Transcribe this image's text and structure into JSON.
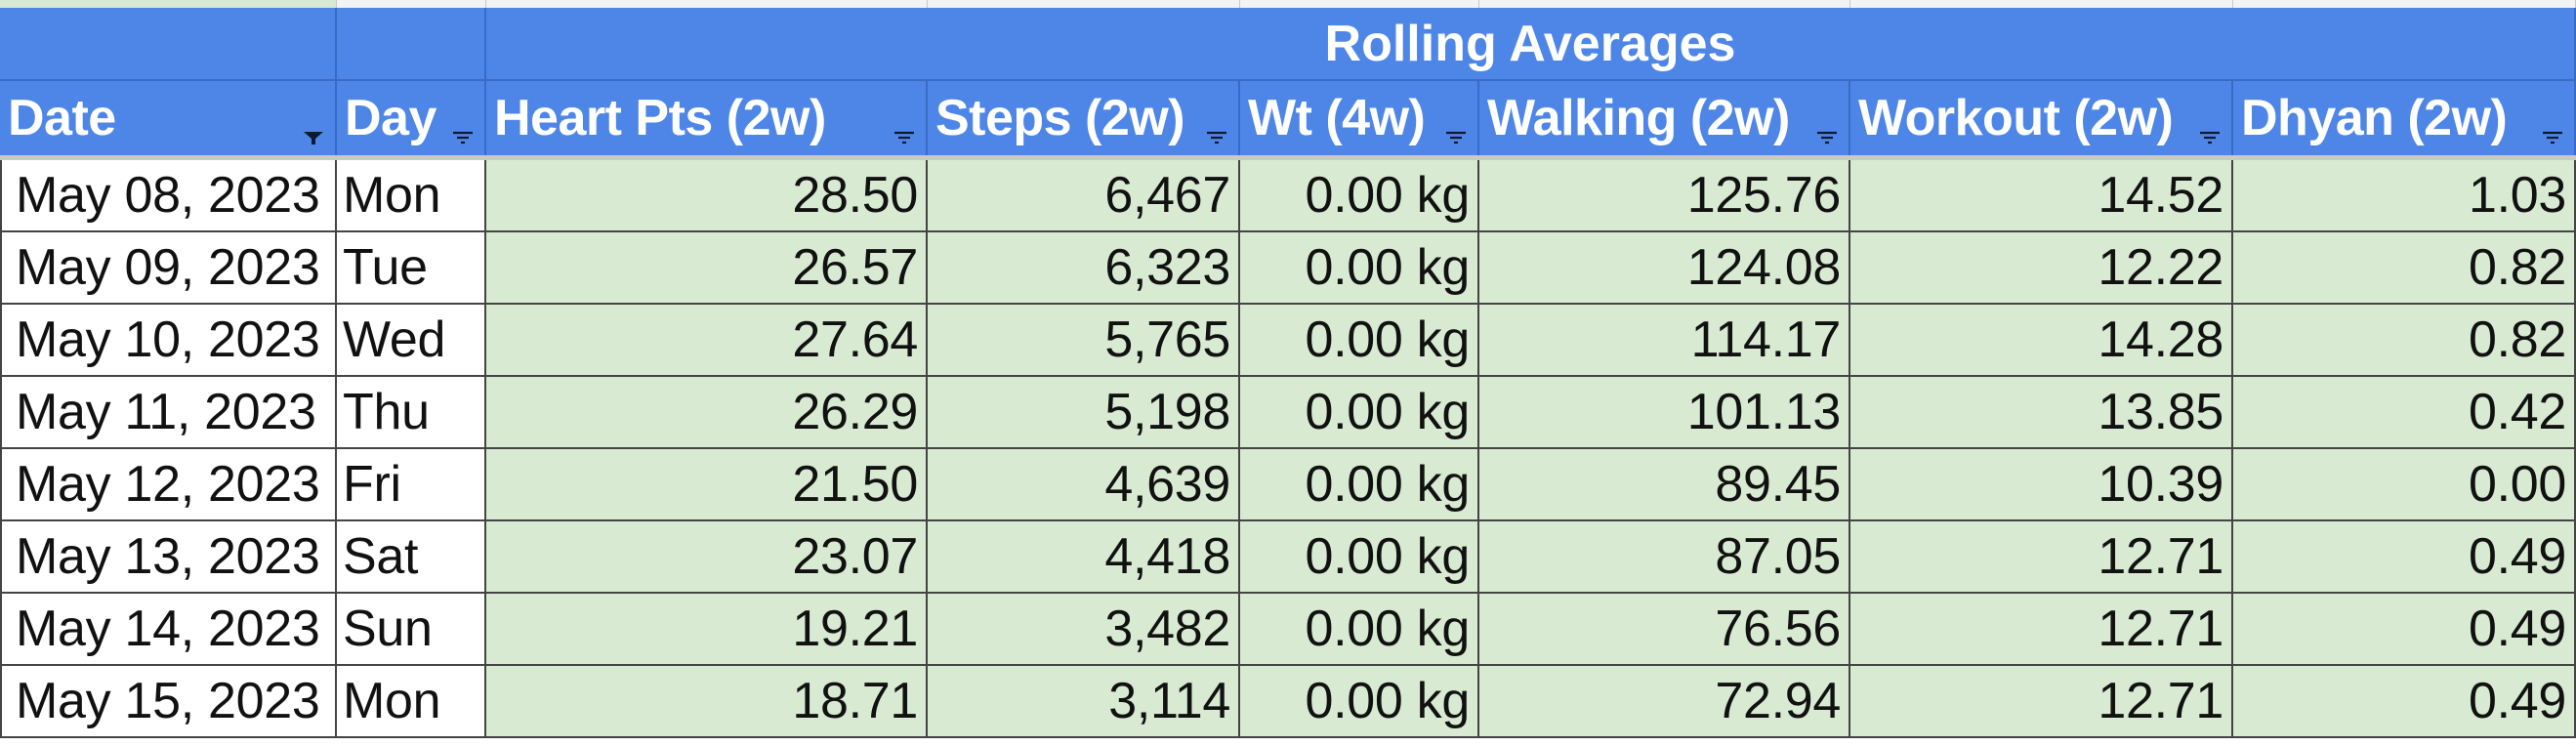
{
  "header": {
    "banner": "Rolling Averages",
    "columns": [
      "Date",
      "Day",
      "Heart Pts (2w)",
      "Steps (2w)",
      "Wt (4w)",
      "Walking (2w)",
      "Workout (2w)",
      "Dhyan (2w)"
    ],
    "filter_icons": [
      "filter-active-icon",
      "filter-icon",
      "filter-icon",
      "filter-icon",
      "filter-icon",
      "filter-icon",
      "filter-icon",
      "filter-icon"
    ]
  },
  "colors": {
    "header_bg": "#4e86e8",
    "header_text": "#ffffff",
    "data_bg": "#d9ead3",
    "date_bg": "#ffffff"
  },
  "rows": [
    {
      "date": "May 08, 2023",
      "day": "Mon",
      "heart": "28.50",
      "steps": "6,467",
      "wt": "0.00 kg",
      "walking": "125.76",
      "workout": "14.52",
      "dhyan": "1.03"
    },
    {
      "date": "May 09, 2023",
      "day": "Tue",
      "heart": "26.57",
      "steps": "6,323",
      "wt": "0.00 kg",
      "walking": "124.08",
      "workout": "12.22",
      "dhyan": "0.82"
    },
    {
      "date": "May 10, 2023",
      "day": "Wed",
      "heart": "27.64",
      "steps": "5,765",
      "wt": "0.00 kg",
      "walking": "114.17",
      "workout": "14.28",
      "dhyan": "0.82"
    },
    {
      "date": "May 11, 2023",
      "day": "Thu",
      "heart": "26.29",
      "steps": "5,198",
      "wt": "0.00 kg",
      "walking": "101.13",
      "workout": "13.85",
      "dhyan": "0.42"
    },
    {
      "date": "May 12, 2023",
      "day": "Fri",
      "heart": "21.50",
      "steps": "4,639",
      "wt": "0.00 kg",
      "walking": "89.45",
      "workout": "10.39",
      "dhyan": "0.00"
    },
    {
      "date": "May 13, 2023",
      "day": "Sat",
      "heart": "23.07",
      "steps": "4,418",
      "wt": "0.00 kg",
      "walking": "87.05",
      "workout": "12.71",
      "dhyan": "0.49"
    },
    {
      "date": "May 14, 2023",
      "day": "Sun",
      "heart": "19.21",
      "steps": "3,482",
      "wt": "0.00 kg",
      "walking": "76.56",
      "workout": "12.71",
      "dhyan": "0.49"
    },
    {
      "date": "May 15, 2023",
      "day": "Mon",
      "heart": "18.71",
      "steps": "3,114",
      "wt": "0.00 kg",
      "walking": "72.94",
      "workout": "12.71",
      "dhyan": "0.49"
    }
  ]
}
